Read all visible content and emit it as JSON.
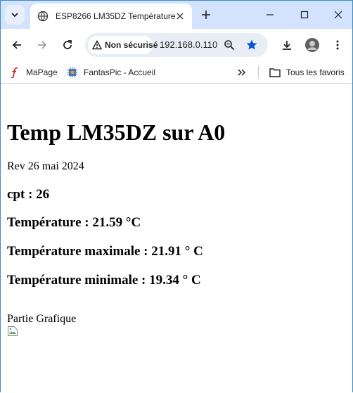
{
  "browser": {
    "tab": {
      "title": "ESP8266 LM35DZ Température"
    },
    "omnibox": {
      "security_label": "Non sécurisé",
      "url": "192.168.0.110"
    },
    "bookmarks": {
      "items": [
        {
          "label": "MaPage"
        },
        {
          "label": "FantasPic - Accueil"
        }
      ],
      "all_bookmarks_label": "Tous les favoris"
    }
  },
  "page": {
    "title": "Temp LM35DZ sur A0",
    "revision": "Rev 26 mai 2024",
    "counter": "cpt : 26",
    "temperature": "Température : 21.59 °C",
    "temperature_max": "Température maximale : 21.91 ° C",
    "temperature_min": "Température minimale : 19.34 ° C",
    "graph_heading": "Partie Grafique"
  }
}
